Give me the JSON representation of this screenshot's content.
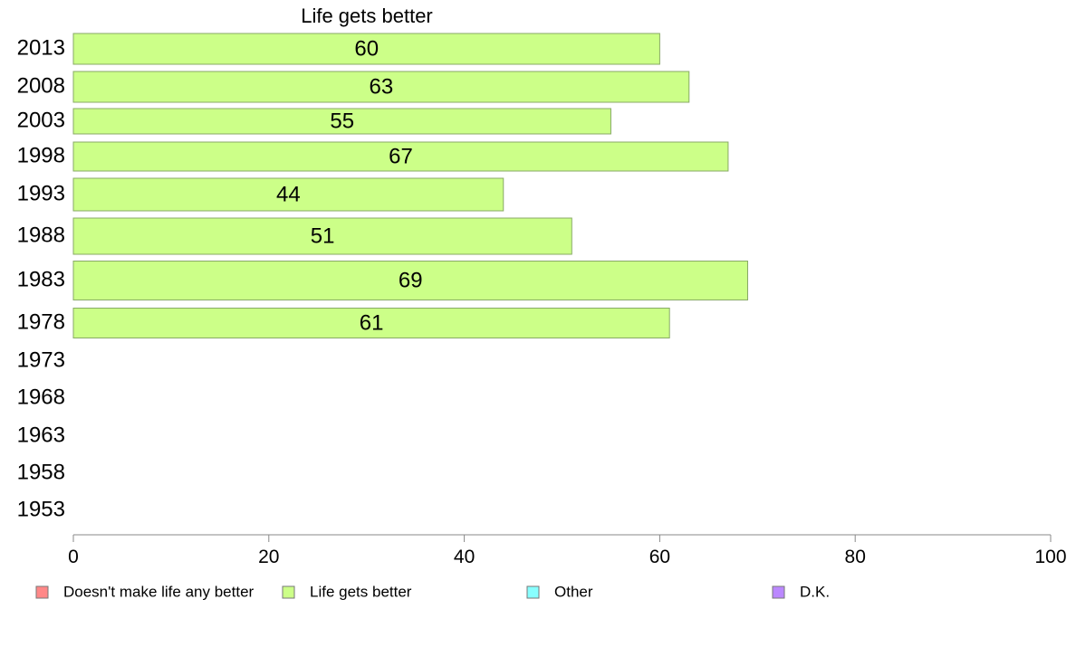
{
  "chart_data": {
    "type": "bar",
    "orientation": "horizontal",
    "title": "Life gets better",
    "categories": [
      "2013",
      "2008",
      "2003",
      "1998",
      "1993",
      "1988",
      "1983",
      "1978",
      "1973",
      "1968",
      "1963",
      "1958",
      "1953"
    ],
    "series": [
      {
        "name": "Life gets better",
        "color": "#ccff88",
        "values": [
          60,
          63,
          55,
          67,
          44,
          51,
          69,
          61,
          null,
          null,
          null,
          null,
          null
        ]
      }
    ],
    "data_labels": [
      "60",
      "63",
      "55",
      "67",
      "44",
      "51",
      "69",
      "61"
    ],
    "xlim": [
      0,
      100
    ],
    "x_ticks": [
      0,
      20,
      40,
      60,
      80,
      100
    ],
    "grid": false,
    "legend_position": "bottom",
    "legend": [
      {
        "label": "Doesn't make life any better",
        "color": "#ff8888"
      },
      {
        "label": "Life gets better",
        "color": "#ccff88"
      },
      {
        "label": "Other",
        "color": "#88ffff"
      },
      {
        "label": "D.K.",
        "color": "#bb88ff"
      }
    ],
    "xlabel": "",
    "ylabel": ""
  }
}
